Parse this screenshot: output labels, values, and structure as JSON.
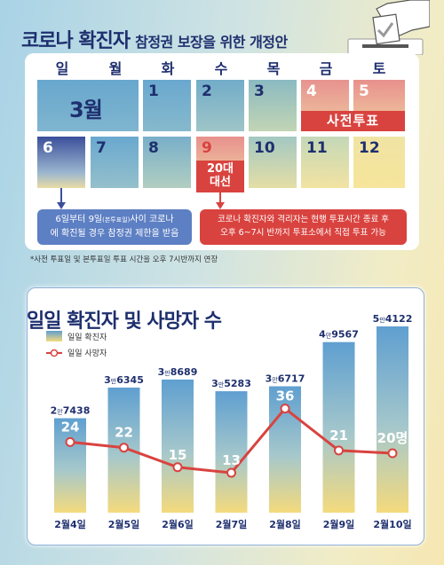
{
  "header": {
    "title": "코로나 확진자",
    "subtitle": "참정권 보장을 위한 개정안"
  },
  "calendar": {
    "weekdays": [
      "일",
      "월",
      "화",
      "수",
      "목",
      "금",
      "토"
    ],
    "month_label": "3월",
    "dates": [
      "1",
      "2",
      "3",
      "4",
      "5",
      "6",
      "7",
      "8",
      "9",
      "10",
      "11",
      "12"
    ],
    "early_vote_label": "사전투표",
    "election_label_line1": "20대",
    "election_label_line2": "대선",
    "note_blue_line1_a": "6일부터 9일",
    "note_blue_line1_small": "(본투표일)",
    "note_blue_line1_b": "사이 코로나",
    "note_blue_line2": "에 확진될 경우 참정권 제한을 받음",
    "note_red_line1": "코로나 확진자와 격리자는 현행 투표시간 종료 후",
    "note_red_line2": "오후 6~7시 반까지 투표소에서 직접 투표 가능",
    "footnote": "*사전 투표일 및 본투표일 투표 시간을 오후 7시반까지 연장"
  },
  "colors": {
    "navy": "#1e2f6e",
    "red": "#d9433f",
    "blue_note": "#5d7fc3",
    "bar_top": "#5f9fd0",
    "bar_bottom": "#f4da7d"
  },
  "chart_data": {
    "type": "bar",
    "title": "일일 확진자 및 사망자 수",
    "categories": [
      "2월4일",
      "2월5일",
      "2월6일",
      "2월7일",
      "2월8일",
      "2월9일",
      "2월10일"
    ],
    "series": [
      {
        "name": "일일 확진자",
        "type": "bar",
        "values": [
          27438,
          36345,
          38689,
          35283,
          36717,
          49567,
          54122
        ]
      },
      {
        "name": "일일 사망자",
        "type": "line",
        "values": [
          24,
          22,
          15,
          13,
          36,
          21,
          20
        ]
      }
    ],
    "bar_labels": [
      {
        "big": "2",
        "man": "만",
        "rest": "7438"
      },
      {
        "big": "3",
        "man": "만",
        "rest": "6345"
      },
      {
        "big": "3",
        "man": "만",
        "rest": "8689"
      },
      {
        "big": "3",
        "man": "만",
        "rest": "5283"
      },
      {
        "big": "3",
        "man": "만",
        "rest": "6717"
      },
      {
        "big": "4",
        "man": "만",
        "rest": "9567"
      },
      {
        "big": "5",
        "man": "만",
        "rest": "4122"
      }
    ],
    "death_labels": [
      "24",
      "22",
      "15",
      "13",
      "36",
      "21",
      "20명"
    ]
  }
}
